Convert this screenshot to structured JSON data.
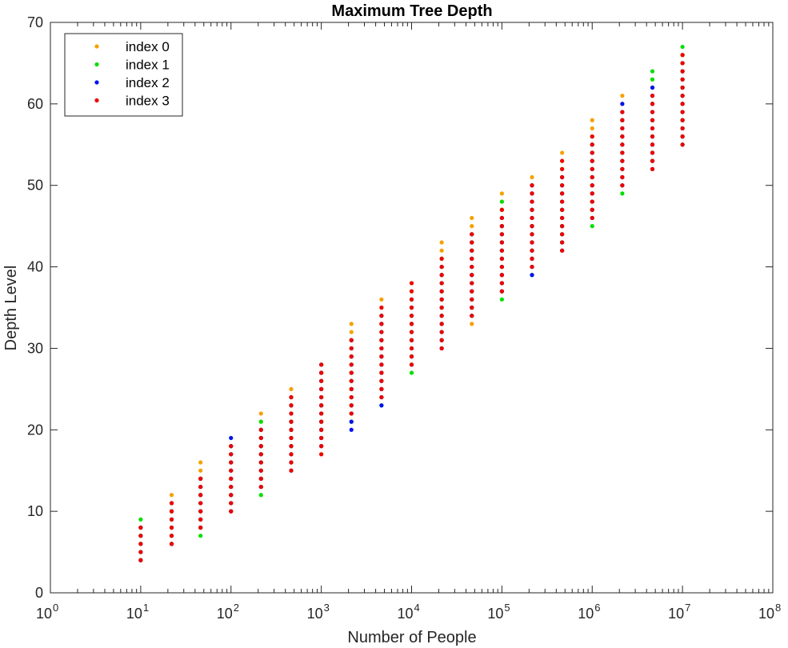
{
  "chart_data": {
    "type": "scatter",
    "title": "Maximum Tree Depth",
    "xlabel": "Number of People",
    "ylabel": "Depth Level",
    "xscale": "log",
    "xlim": [
      1,
      100000000
    ],
    "ylim": [
      0,
      70
    ],
    "grid": false,
    "legend_position": "top-left",
    "x_ticks": [
      {
        "base": "10",
        "exp": "0"
      },
      {
        "base": "10",
        "exp": "1"
      },
      {
        "base": "10",
        "exp": "2"
      },
      {
        "base": "10",
        "exp": "3"
      },
      {
        "base": "10",
        "exp": "4"
      },
      {
        "base": "10",
        "exp": "5"
      },
      {
        "base": "10",
        "exp": "6"
      },
      {
        "base": "10",
        "exp": "7"
      },
      {
        "base": "10",
        "exp": "8"
      }
    ],
    "y_ticks": [
      "0",
      "10",
      "20",
      "30",
      "40",
      "50",
      "60",
      "70"
    ],
    "x": [
      10,
      22,
      46,
      100,
      215,
      464,
      1000,
      2154,
      4642,
      10000,
      21544,
      46416,
      100000,
      215443,
      464159,
      1000000,
      2154435,
      4641589,
      10000000
    ],
    "series": [
      {
        "name": "index 0",
        "color": "#F5A000",
        "ranges": [
          [
            4,
            8
          ],
          [
            6,
            12
          ],
          [
            8,
            16
          ],
          [
            10,
            18
          ],
          [
            13,
            22
          ],
          [
            16,
            25
          ],
          [
            17,
            28
          ],
          [
            21,
            33
          ],
          [
            24,
            36
          ],
          [
            28,
            38
          ],
          [
            30,
            43
          ],
          [
            33,
            46
          ],
          [
            37,
            49
          ],
          [
            41,
            51
          ],
          [
            42,
            54
          ],
          [
            47,
            58
          ],
          [
            51,
            61
          ],
          [
            53,
            63
          ],
          [
            56,
            66
          ]
        ]
      },
      {
        "name": "index 1",
        "color": "#00E000",
        "ranges": [
          [
            4,
            9
          ],
          [
            6,
            11
          ],
          [
            7,
            14
          ],
          [
            10,
            18
          ],
          [
            12,
            21
          ],
          [
            15,
            24
          ],
          [
            18,
            28
          ],
          [
            21,
            31
          ],
          [
            23,
            34
          ],
          [
            27,
            36
          ],
          [
            30,
            41
          ],
          [
            34,
            44
          ],
          [
            36,
            48
          ],
          [
            39,
            50
          ],
          [
            43,
            52
          ],
          [
            45,
            56
          ],
          [
            49,
            59
          ],
          [
            52,
            64
          ],
          [
            55,
            67
          ]
        ]
      },
      {
        "name": "index 2",
        "color": "#0010F0",
        "ranges": [
          [
            4,
            8
          ],
          [
            6,
            11
          ],
          [
            8,
            14
          ],
          [
            10,
            19
          ],
          [
            13,
            20
          ],
          [
            15,
            24
          ],
          [
            18,
            28
          ],
          [
            20,
            31
          ],
          [
            23,
            34
          ],
          [
            28,
            36
          ],
          [
            30,
            40
          ],
          [
            34,
            44
          ],
          [
            37,
            46
          ],
          [
            39,
            50
          ],
          [
            42,
            51
          ],
          [
            46,
            55
          ],
          [
            50,
            60
          ],
          [
            52,
            62
          ],
          [
            55,
            65
          ]
        ]
      },
      {
        "name": "index 3",
        "color": "#EE0000",
        "ranges": [
          [
            4,
            8
          ],
          [
            6,
            11
          ],
          [
            8,
            14
          ],
          [
            10,
            18
          ],
          [
            13,
            20
          ],
          [
            15,
            24
          ],
          [
            17,
            28
          ],
          [
            22,
            31
          ],
          [
            24,
            35
          ],
          [
            28,
            38
          ],
          [
            30,
            41
          ],
          [
            34,
            44
          ],
          [
            37,
            47
          ],
          [
            40,
            50
          ],
          [
            42,
            53
          ],
          [
            46,
            56
          ],
          [
            50,
            59
          ],
          [
            52,
            61
          ],
          [
            55,
            66
          ]
        ]
      }
    ]
  }
}
